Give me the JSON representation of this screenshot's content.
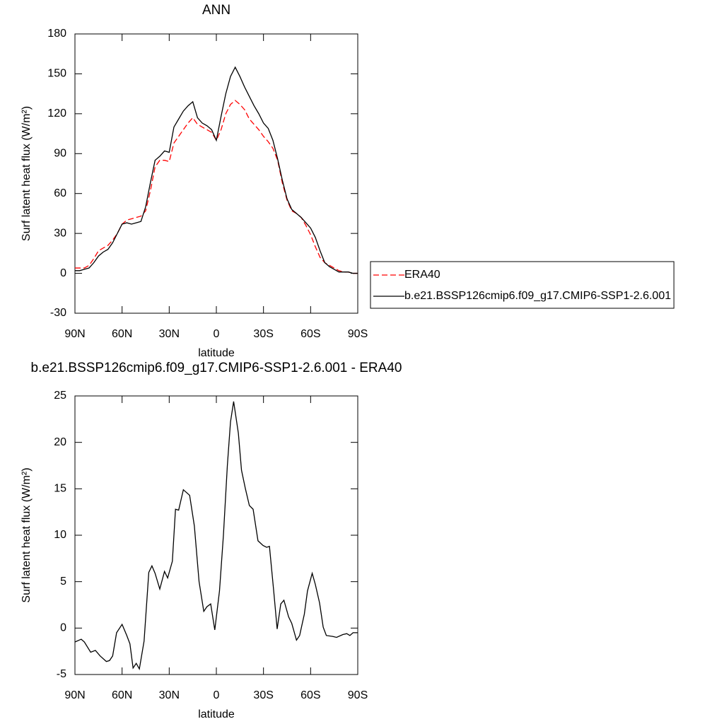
{
  "chart_data": [
    {
      "type": "line",
      "title": "ANN",
      "xlabel": "latitude",
      "ylabel": "Surf latent heat flux (W/m²)",
      "x": [
        90,
        87,
        84,
        81,
        78,
        75,
        72,
        69,
        66,
        63,
        60,
        57,
        54,
        51,
        48,
        45,
        42,
        39,
        36,
        33,
        30,
        27,
        24,
        21,
        18,
        15,
        12,
        9,
        6,
        3,
        0,
        -3,
        -6,
        -9,
        -12,
        -15,
        -18,
        -21,
        -24,
        -27,
        -30,
        -33,
        -36,
        -39,
        -42,
        -45,
        -48,
        -51,
        -54,
        -57,
        -60,
        -63,
        -66,
        -69,
        -72,
        -75,
        -78,
        -81,
        -84,
        -87,
        -90
      ],
      "series": [
        {
          "name": "ERA40",
          "color": "#ff0000",
          "linestyle": "dashed",
          "values": [
            4,
            4,
            4,
            6,
            11,
            17,
            19,
            21,
            25,
            30,
            37,
            40,
            41,
            42,
            43,
            47,
            62,
            80,
            85,
            85,
            84,
            98,
            103,
            108,
            113,
            117,
            112,
            110,
            108,
            106,
            100,
            108,
            120,
            127,
            130,
            127,
            123,
            116,
            112,
            108,
            103,
            99,
            94,
            85,
            68,
            55,
            47,
            45,
            42,
            36,
            29,
            20,
            12,
            8,
            6,
            4,
            2,
            1,
            1,
            0,
            0
          ]
        },
        {
          "name": "b.e21.BSSP126cmip6.f09_g17.CMIP6-SSP1-2.6.001",
          "color": "#000000",
          "linestyle": "solid",
          "values": [
            2,
            2,
            3,
            4,
            8,
            13,
            16,
            18,
            23,
            30,
            37,
            38,
            37,
            38,
            39,
            50,
            68,
            85,
            88,
            92,
            91,
            110,
            116,
            122,
            126,
            129,
            117,
            113,
            111,
            108,
            100,
            118,
            135,
            148,
            155,
            148,
            140,
            133,
            126,
            120,
            113,
            109,
            100,
            86,
            70,
            56,
            48,
            45,
            42,
            38,
            34,
            27,
            17,
            8,
            5,
            3,
            1,
            1,
            1,
            0,
            0
          ]
        }
      ],
      "xlim": [
        90,
        -90
      ],
      "xticks": [
        {
          "value": 90,
          "label": "90N"
        },
        {
          "value": 60,
          "label": "60N"
        },
        {
          "value": 30,
          "label": "30N"
        },
        0,
        {
          "value": -30,
          "label": "30S"
        },
        {
          "value": -60,
          "label": "60S"
        },
        {
          "value": -90,
          "label": "90S"
        }
      ],
      "ylim": [
        -30,
        180
      ],
      "yticks": [
        -30,
        0,
        30,
        60,
        90,
        120,
        150,
        180
      ],
      "legend": "outside-right"
    },
    {
      "type": "line",
      "title": "b.e21.BSSP126cmip6.f09_g17.CMIP6-SSP1-2.6.001 - ERA40",
      "xlabel": "latitude",
      "ylabel": "Surf latent heat flux (W/m²)",
      "x": [
        90,
        86,
        84,
        80,
        77,
        74,
        70,
        68,
        66,
        63.5,
        60,
        57,
        55,
        53,
        51,
        49,
        46,
        43,
        41,
        39,
        36,
        33,
        31,
        28,
        26,
        24,
        21,
        17,
        14,
        11,
        8,
        6,
        3.6,
        1,
        -2,
        -4.5,
        -7,
        -9,
        -11,
        -14,
        -16,
        -18.5,
        -21,
        -23.4,
        -26.5,
        -29.7,
        -32,
        -33.8,
        -36.5,
        -38.7,
        -41,
        -43,
        -46,
        -48,
        -51,
        -53,
        -56,
        -58,
        -61,
        -63,
        -65.7,
        -68,
        -70,
        -74,
        -76.5,
        -80.5,
        -83,
        -85,
        -87,
        -90
      ],
      "series": [
        {
          "color": "#000000",
          "linestyle": "solid",
          "values": [
            -1.5,
            -1.2,
            -1.5,
            -2.6,
            -2.4,
            -3,
            -3.6,
            -3.5,
            -3,
            -0.5,
            0.4,
            -0.8,
            -1.7,
            -4.3,
            -3.8,
            -4.4,
            -1.4,
            6,
            6.7,
            5.9,
            4.2,
            6.1,
            5.4,
            7.2,
            12.8,
            12.7,
            14.9,
            14.3,
            11,
            5,
            1.8,
            2.3,
            2.6,
            -0.2,
            4,
            10,
            17.5,
            22.2,
            24.4,
            21,
            17,
            15,
            13.2,
            12.8,
            9.4,
            8.9,
            8.7,
            8.8,
            4,
            -0.1,
            2.6,
            3,
            1.2,
            0.5,
            -1.3,
            -0.8,
            1.5,
            4,
            5.9,
            4.7,
            2.7,
            0.1,
            -0.8,
            -0.9,
            -1,
            -0.7,
            -0.6,
            -0.8,
            -0.5,
            -0.5
          ]
        }
      ],
      "xlim": [
        90,
        -90
      ],
      "xticks": [
        {
          "value": 90,
          "label": "90N"
        },
        {
          "value": 60,
          "label": "60N"
        },
        {
          "value": 30,
          "label": "30N"
        },
        0,
        {
          "value": -30,
          "label": "30S"
        },
        {
          "value": -60,
          "label": "60S"
        },
        {
          "value": -90,
          "label": "90S"
        }
      ],
      "ylim": [
        -5,
        25
      ],
      "yticks": [
        -5,
        0,
        5,
        10,
        15,
        20,
        25
      ]
    }
  ]
}
